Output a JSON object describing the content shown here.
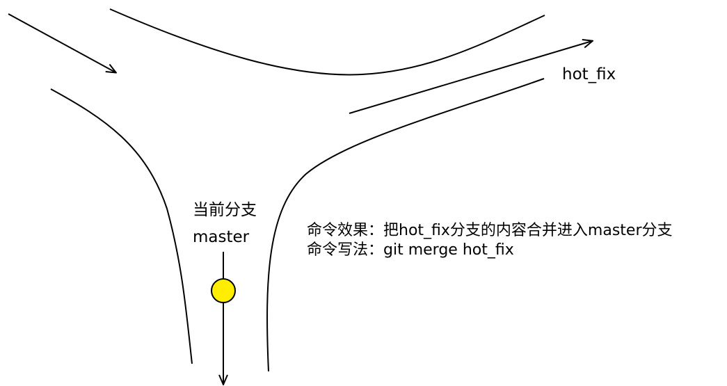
{
  "diagram": {
    "branch_label": "hot_fix",
    "current_branch_caption": "当前分支",
    "current_branch_name": "master",
    "effect_line": "命令效果：把hot_fix分支的内容合并进入master分支",
    "syntax_line": "命令写法：git merge hot_fix",
    "colors": {
      "stroke": "#000000",
      "head_marker": "#ffee00",
      "background": "#ffffff"
    }
  }
}
